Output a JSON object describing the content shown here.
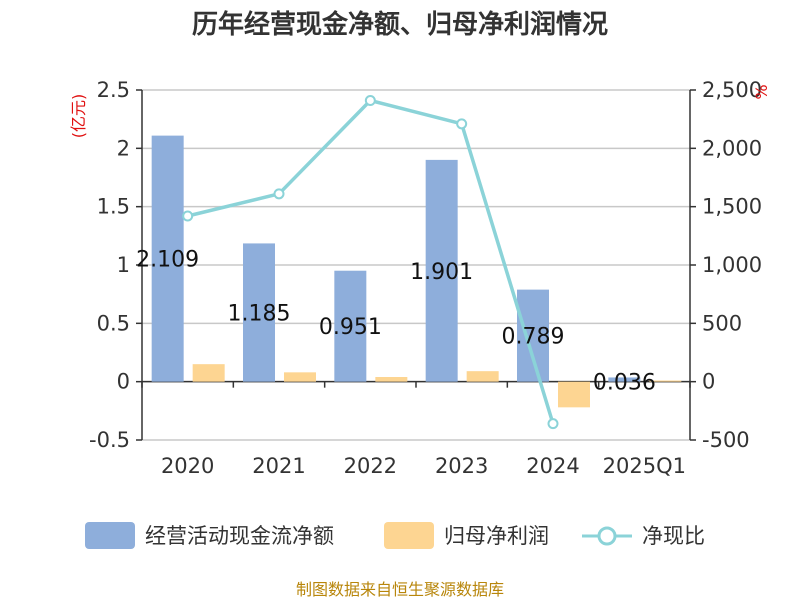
{
  "chart_data": {
    "type": "bar",
    "title": "历年经营现金净额、归母净利润情况",
    "categories": [
      "2020",
      "2021",
      "2022",
      "2023",
      "2024",
      "2025Q1"
    ],
    "series": [
      {
        "name": "经营活动现金流净额",
        "type": "bar",
        "axis": "left",
        "color": "#8eaedb",
        "values": [
          2.109,
          1.185,
          0.951,
          1.901,
          0.789,
          0.036
        ],
        "labels": [
          "2.109",
          "1.185",
          "0.951",
          "1.901",
          "0.789",
          "0.036"
        ]
      },
      {
        "name": "归母净利润",
        "type": "bar",
        "axis": "left",
        "color": "#fdd592",
        "values": [
          0.15,
          0.08,
          0.04,
          0.09,
          -0.22,
          0.01
        ]
      },
      {
        "name": "净现比",
        "type": "line",
        "axis": "right",
        "color": "#8bd3d8",
        "values": [
          1420,
          1610,
          2410,
          2210,
          -360,
          null
        ]
      }
    ],
    "y_left": {
      "label": "(亿元)",
      "ticks": [
        "2.5",
        "2",
        "1.5",
        "1",
        "0.5",
        "0",
        "-0.5"
      ],
      "range": [
        -0.5,
        2.5
      ]
    },
    "y_right": {
      "label": "%",
      "ticks": [
        "2,500",
        "2,000",
        "1,500",
        "1,000",
        "500",
        "0",
        "-500"
      ],
      "range": [
        -500,
        2500
      ]
    },
    "grid": true,
    "legend": "bottom"
  },
  "source": "制图数据来自恒生聚源数据库"
}
